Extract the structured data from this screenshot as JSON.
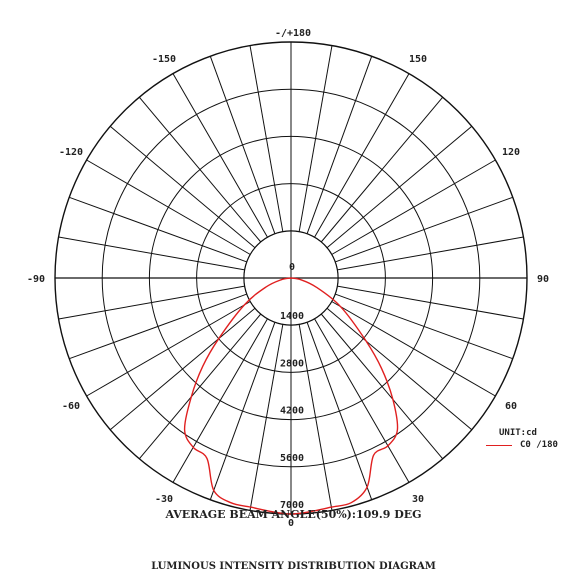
{
  "chart_data": {
    "type": "polar",
    "title": "LUMINOUS INTENSITY DISTRIBUTION DIAGRAM",
    "subtitle": "AVERAGE BEAM ANGLE(50%):109.9 DEG",
    "unit_label": "UNIT:cd",
    "angle_labels": [
      "-/+180",
      "-150",
      "150",
      "-120",
      "120",
      "-90",
      "90",
      "-60",
      "60",
      "-30",
      "30",
      "0"
    ],
    "angle_label_values": [
      180,
      -150,
      150,
      -120,
      120,
      -90,
      90,
      -60,
      60,
      -30,
      30,
      0
    ],
    "radial_labels": [
      "0",
      "1400",
      "2800",
      "4200",
      "5600",
      "7000"
    ],
    "radial_values": [
      0,
      1400,
      2800,
      4200,
      5600,
      7000
    ],
    "rmax": 7000,
    "angle_step_deg": 10,
    "series": [
      {
        "name": "C0 /180",
        "color": "#e02020",
        "angles_deg": [
          -90,
          -80,
          -70,
          -60,
          -50,
          -45,
          -40,
          -35,
          -30,
          -25,
          -20,
          -15,
          -10,
          -5,
          0,
          5,
          10,
          15,
          20,
          25,
          30,
          35,
          40,
          45,
          50,
          60,
          70,
          80,
          90
        ],
        "values_cd": [
          0,
          300,
          800,
          1600,
          2800,
          3700,
          4600,
          5500,
          5800,
          5900,
          6700,
          6900,
          6900,
          6950,
          7000,
          6950,
          6900,
          6900,
          6600,
          5800,
          5750,
          5500,
          4700,
          3800,
          2900,
          1700,
          800,
          300,
          0
        ]
      }
    ]
  }
}
